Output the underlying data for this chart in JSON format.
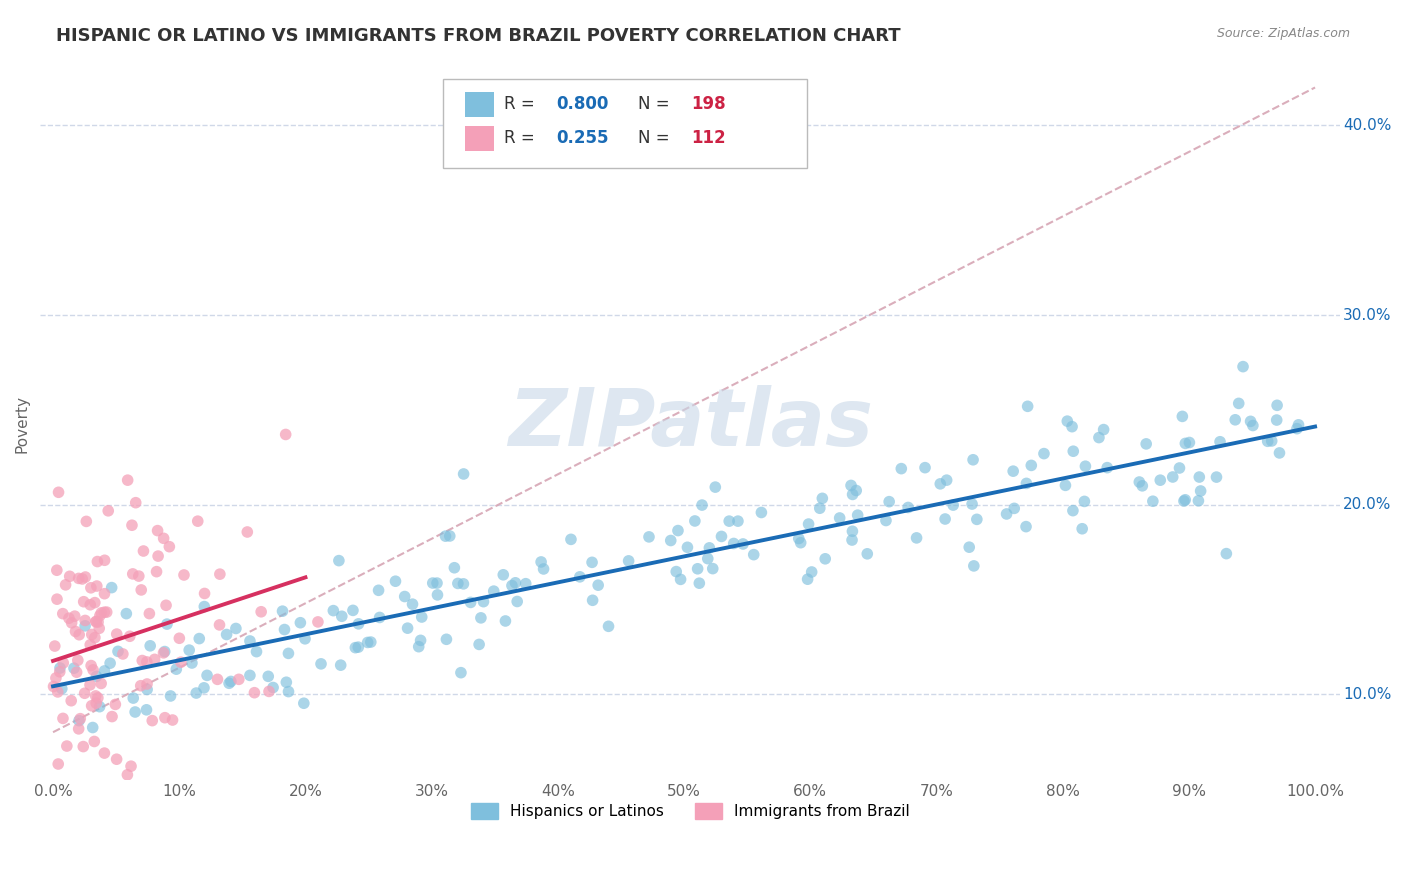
{
  "title": "HISPANIC OR LATINO VS IMMIGRANTS FROM BRAZIL POVERTY CORRELATION CHART",
  "source": "Source: ZipAtlas.com",
  "xlabel": "",
  "ylabel": "Poverty",
  "xlim": [
    -0.01,
    1.02
  ],
  "ylim": [
    0.055,
    0.43
  ],
  "x_ticks": [
    0.0,
    0.1,
    0.2,
    0.3,
    0.4,
    0.5,
    0.6,
    0.7,
    0.8,
    0.9,
    1.0
  ],
  "y_ticks": [
    0.1,
    0.2,
    0.3,
    0.4
  ],
  "blue_color": "#7fbfdd",
  "pink_color": "#f4a0b8",
  "blue_line_color": "#1a6bb5",
  "pink_line_color": "#d63060",
  "dash_color": "#d4a0b0",
  "legend_label1": "Hispanics or Latinos",
  "legend_label2": "Immigrants from Brazil",
  "blue_R": 0.8,
  "blue_N": 198,
  "pink_R": 0.255,
  "pink_N": 112,
  "random_seed_blue": 42,
  "random_seed_pink": 7,
  "title_fontsize": 13,
  "axis_label_fontsize": 11,
  "tick_fontsize": 11,
  "background_color": "#ffffff",
  "grid_color": "#d0d8e8",
  "blue_text_color": "#1a6bb5",
  "red_text_color": "#cc2244",
  "watermark_color": "#c8d8e8",
  "watermark_alpha": 0.6
}
